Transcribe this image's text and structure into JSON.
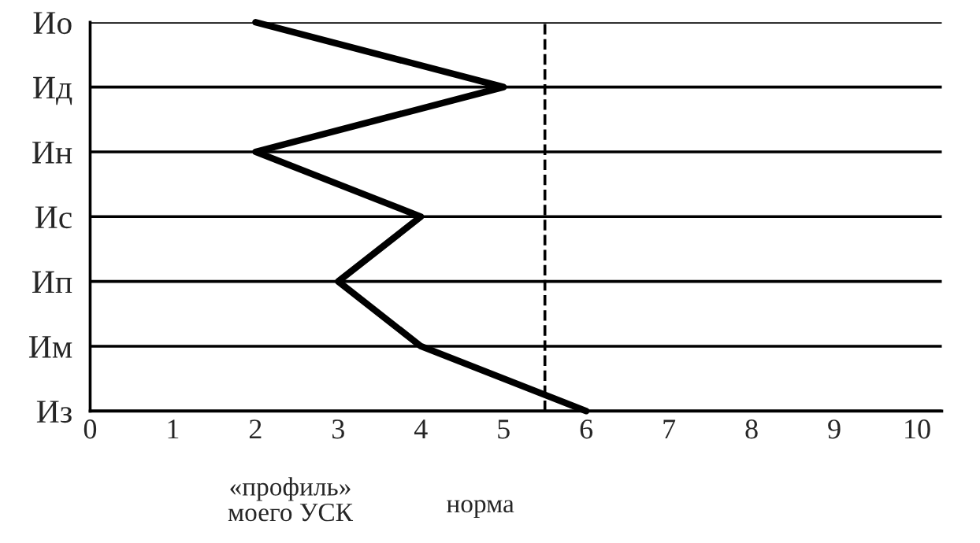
{
  "chart_data": {
    "type": "line",
    "orientation": "horizontal",
    "categories": [
      "Ио",
      "Ид",
      "Ин",
      "Ис",
      "Ип",
      "Им",
      "Из"
    ],
    "series": [
      {
        "color": "#000000",
        "values": [
          2,
          5,
          2,
          4,
          3,
          4,
          6
        ]
      }
    ],
    "xlim": [
      0,
      10.3
    ],
    "xticks": [
      0,
      1,
      2,
      3,
      4,
      5,
      6,
      7,
      8,
      9,
      10
    ],
    "grid": "y",
    "marker": "none",
    "line_style": "solid",
    "ref_lines": [
      {
        "axis": "x",
        "value": 5.5,
        "label": "норма",
        "line_style": "dashed",
        "color": "#000000"
      }
    ],
    "annotations": [
      "«профиль»\nмоего УСК"
    ]
  }
}
